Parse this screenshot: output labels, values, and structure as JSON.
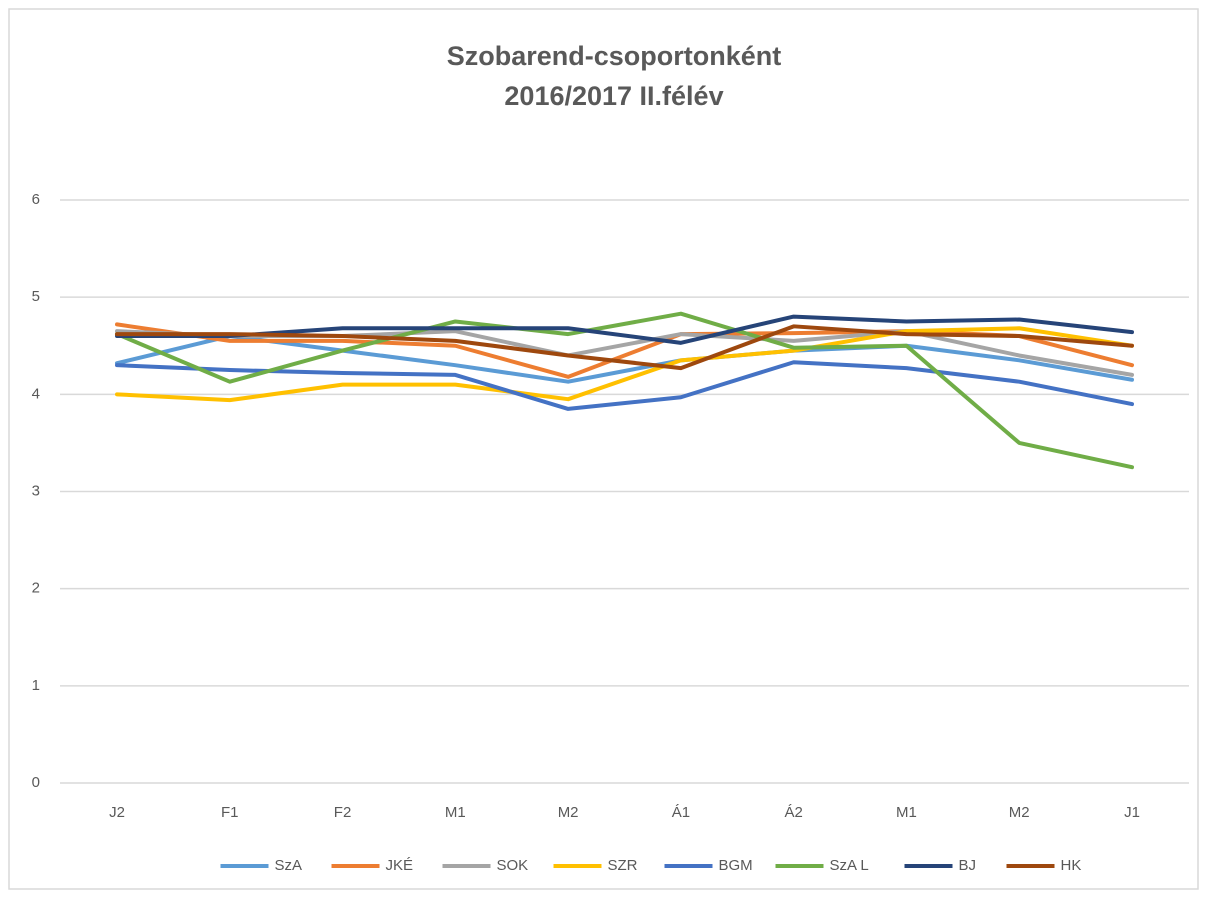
{
  "chart_data": {
    "type": "line",
    "title": [
      "Szobarend-csoportonként",
      "2016/2017 II.félév"
    ],
    "categories": [
      "J2",
      "F1",
      "F2",
      "M1",
      "M2",
      "Á1",
      "Á2",
      "M1",
      "M2",
      "J1"
    ],
    "ylim": [
      0,
      6
    ],
    "yticks": [
      0,
      1,
      2,
      3,
      4,
      5,
      6
    ],
    "grid": true,
    "legend": "bottom",
    "series": [
      {
        "name": "SzA",
        "color": "#5b9bd5",
        "values": [
          4.32,
          4.6,
          4.45,
          4.3,
          4.13,
          4.35,
          4.45,
          4.5,
          4.35,
          4.15
        ]
      },
      {
        "name": "JKÉ",
        "color": "#ed7d31",
        "values": [
          4.72,
          4.55,
          4.55,
          4.5,
          4.18,
          4.62,
          4.63,
          4.65,
          4.6,
          4.3
        ]
      },
      {
        "name": "SOK",
        "color": "#a5a5a5",
        "values": [
          4.65,
          4.6,
          4.6,
          4.65,
          4.4,
          4.62,
          4.55,
          4.65,
          4.4,
          4.2
        ]
      },
      {
        "name": "SZR",
        "color": "#ffc000",
        "values": [
          4.0,
          3.94,
          4.1,
          4.1,
          3.95,
          4.35,
          4.45,
          4.65,
          4.68,
          4.5
        ]
      },
      {
        "name": "BGM",
        "color": "#4472c4",
        "values": [
          4.3,
          4.25,
          4.22,
          4.2,
          3.85,
          3.97,
          4.33,
          4.27,
          4.13,
          3.9
        ]
      },
      {
        "name": "SzA L",
        "color": "#70ad47",
        "values": [
          4.62,
          4.13,
          4.45,
          4.75,
          4.62,
          4.83,
          4.48,
          4.5,
          3.5,
          3.25
        ]
      },
      {
        "name": "BJ",
        "color": "#264478",
        "values": [
          4.6,
          4.6,
          4.68,
          4.68,
          4.68,
          4.53,
          4.8,
          4.75,
          4.77,
          4.64
        ]
      },
      {
        "name": "HK",
        "color": "#9e480e",
        "values": [
          4.62,
          4.62,
          4.6,
          4.55,
          4.4,
          4.27,
          4.7,
          4.62,
          4.6,
          4.5
        ]
      }
    ]
  }
}
